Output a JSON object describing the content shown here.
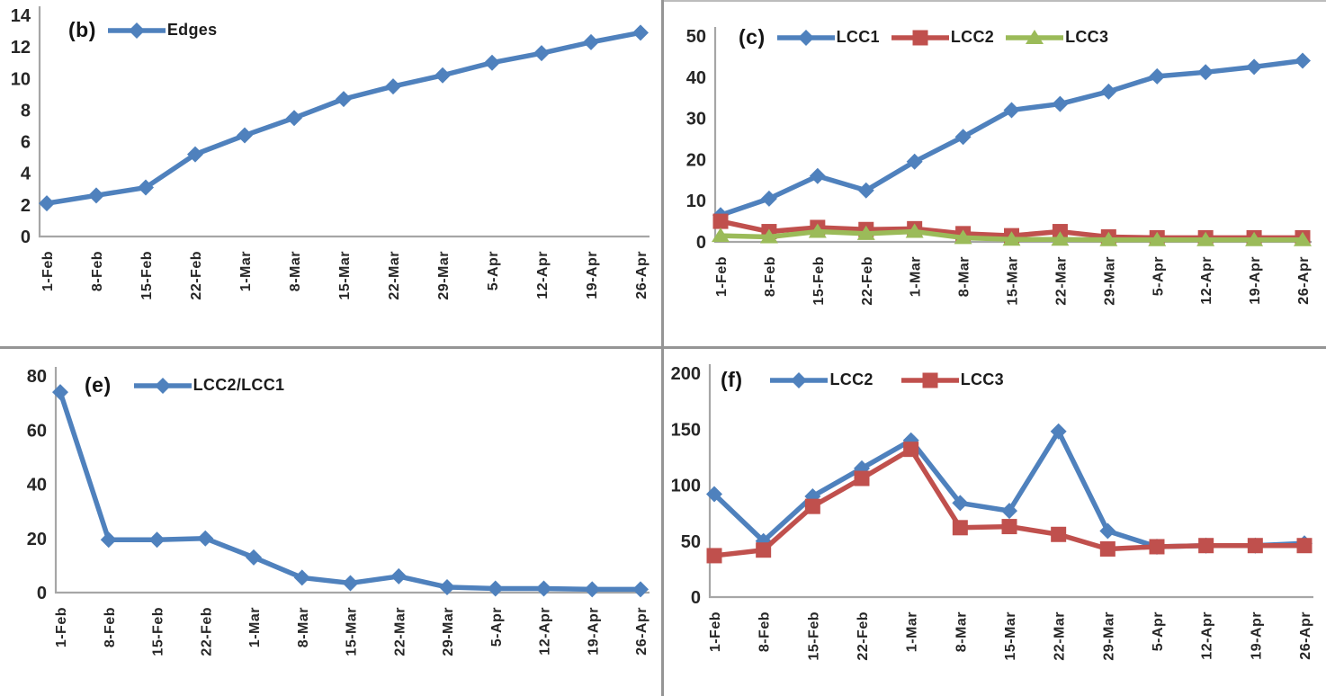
{
  "figure": {
    "panels": [
      "(b)",
      "(c)",
      "(e)",
      "(f)"
    ],
    "divider_color": "#959595",
    "background": "#ffffff"
  },
  "colors": {
    "series_blue": "#4F81BD",
    "series_red": "#C0504D",
    "series_green": "#9BBB59",
    "axis_line": "#A6A6A6",
    "tick_text": "#262626",
    "legend_text": "#1c1c1c"
  },
  "chart_data": [
    {
      "type": "line",
      "panel_label": "(b)",
      "title": "",
      "xlabel": "",
      "ylabel": "",
      "ylim": [
        0,
        14
      ],
      "yticks": [
        0,
        2,
        4,
        6,
        8,
        10,
        12,
        14
      ],
      "grid": false,
      "legend_position": "top-left-inside",
      "categories": [
        "1-Feb",
        "8-Feb",
        "15-Feb",
        "22-Feb",
        "1-Mar",
        "8-Mar",
        "15-Mar",
        "22-Mar",
        "29-Mar",
        "5-Apr",
        "12-Apr",
        "19-Apr",
        "26-Apr"
      ],
      "series": [
        {
          "name": "Edges",
          "color": "#4F81BD",
          "marker": "diamond",
          "values": [
            2.1,
            2.6,
            3.1,
            5.2,
            6.4,
            7.5,
            8.7,
            9.5,
            10.2,
            11.0,
            11.6,
            12.3,
            12.9
          ]
        }
      ]
    },
    {
      "type": "line",
      "panel_label": "(c)",
      "title": "",
      "xlabel": "",
      "ylabel": "",
      "ylim": [
        0,
        50
      ],
      "yticks": [
        0,
        10,
        20,
        30,
        40,
        50
      ],
      "grid": false,
      "legend_position": "top-left-inside",
      "categories": [
        "1-Feb",
        "8-Feb",
        "15-Feb",
        "22-Feb",
        "1-Mar",
        "8-Mar",
        "15-Mar",
        "22-Mar",
        "29-Mar",
        "5-Apr",
        "12-Apr",
        "19-Apr",
        "26-Apr"
      ],
      "series": [
        {
          "name": "LCC1",
          "color": "#4F81BD",
          "marker": "diamond",
          "values": [
            6.5,
            10.5,
            16,
            12.5,
            19.5,
            25.5,
            32,
            33.5,
            36.5,
            40.2,
            41.2,
            42.5,
            44
          ]
        },
        {
          "name": "LCC2",
          "color": "#C0504D",
          "marker": "square",
          "values": [
            5,
            2.5,
            3.5,
            3,
            3.2,
            2,
            1.5,
            2.5,
            1.2,
            1,
            1,
            1,
            1
          ]
        },
        {
          "name": "LCC3",
          "color": "#9BBB59",
          "marker": "triangle",
          "values": [
            1.5,
            1.2,
            2.5,
            2,
            2.5,
            1,
            0.6,
            0.6,
            0.5,
            0.5,
            0.5,
            0.5,
            0.5
          ]
        }
      ]
    },
    {
      "type": "line",
      "panel_label": "(e)",
      "title": "",
      "xlabel": "",
      "ylabel": "",
      "ylim": [
        0,
        80
      ],
      "yticks": [
        0,
        20,
        40,
        60,
        80
      ],
      "grid": false,
      "legend_position": "top-left-inside",
      "categories": [
        "1-Feb",
        "8-Feb",
        "15-Feb",
        "22-Feb",
        "1-Mar",
        "8-Mar",
        "15-Mar",
        "22-Mar",
        "29-Mar",
        "5-Apr",
        "12-Apr",
        "19-Apr",
        "26-Apr"
      ],
      "series": [
        {
          "name": "LCC2/LCC1",
          "color": "#4F81BD",
          "marker": "diamond",
          "values": [
            74,
            19.5,
            19.5,
            20,
            13,
            5.5,
            3.5,
            6,
            2,
            1.5,
            1.5,
            1.2,
            1.2
          ]
        }
      ]
    },
    {
      "type": "line",
      "panel_label": "(f)",
      "title": "",
      "xlabel": "",
      "ylabel": "",
      "ylim": [
        0,
        200
      ],
      "yticks": [
        0,
        50,
        100,
        150,
        200
      ],
      "grid": false,
      "legend_position": "top-left-inside",
      "categories": [
        "1-Feb",
        "8-Feb",
        "15-Feb",
        "22-Feb",
        "1-Mar",
        "8-Mar",
        "15-Mar",
        "22-Mar",
        "29-Mar",
        "5-Apr",
        "12-Apr",
        "19-Apr",
        "26-Apr"
      ],
      "series": [
        {
          "name": "LCC2",
          "color": "#4F81BD",
          "marker": "diamond",
          "values": [
            92,
            50,
            90,
            115,
            140,
            84,
            77,
            148,
            59,
            45,
            46,
            46,
            48
          ]
        },
        {
          "name": "LCC3",
          "color": "#C0504D",
          "marker": "square",
          "values": [
            37,
            42,
            81,
            106,
            132,
            62,
            63,
            56,
            43,
            45,
            46,
            46,
            46
          ]
        }
      ]
    }
  ]
}
